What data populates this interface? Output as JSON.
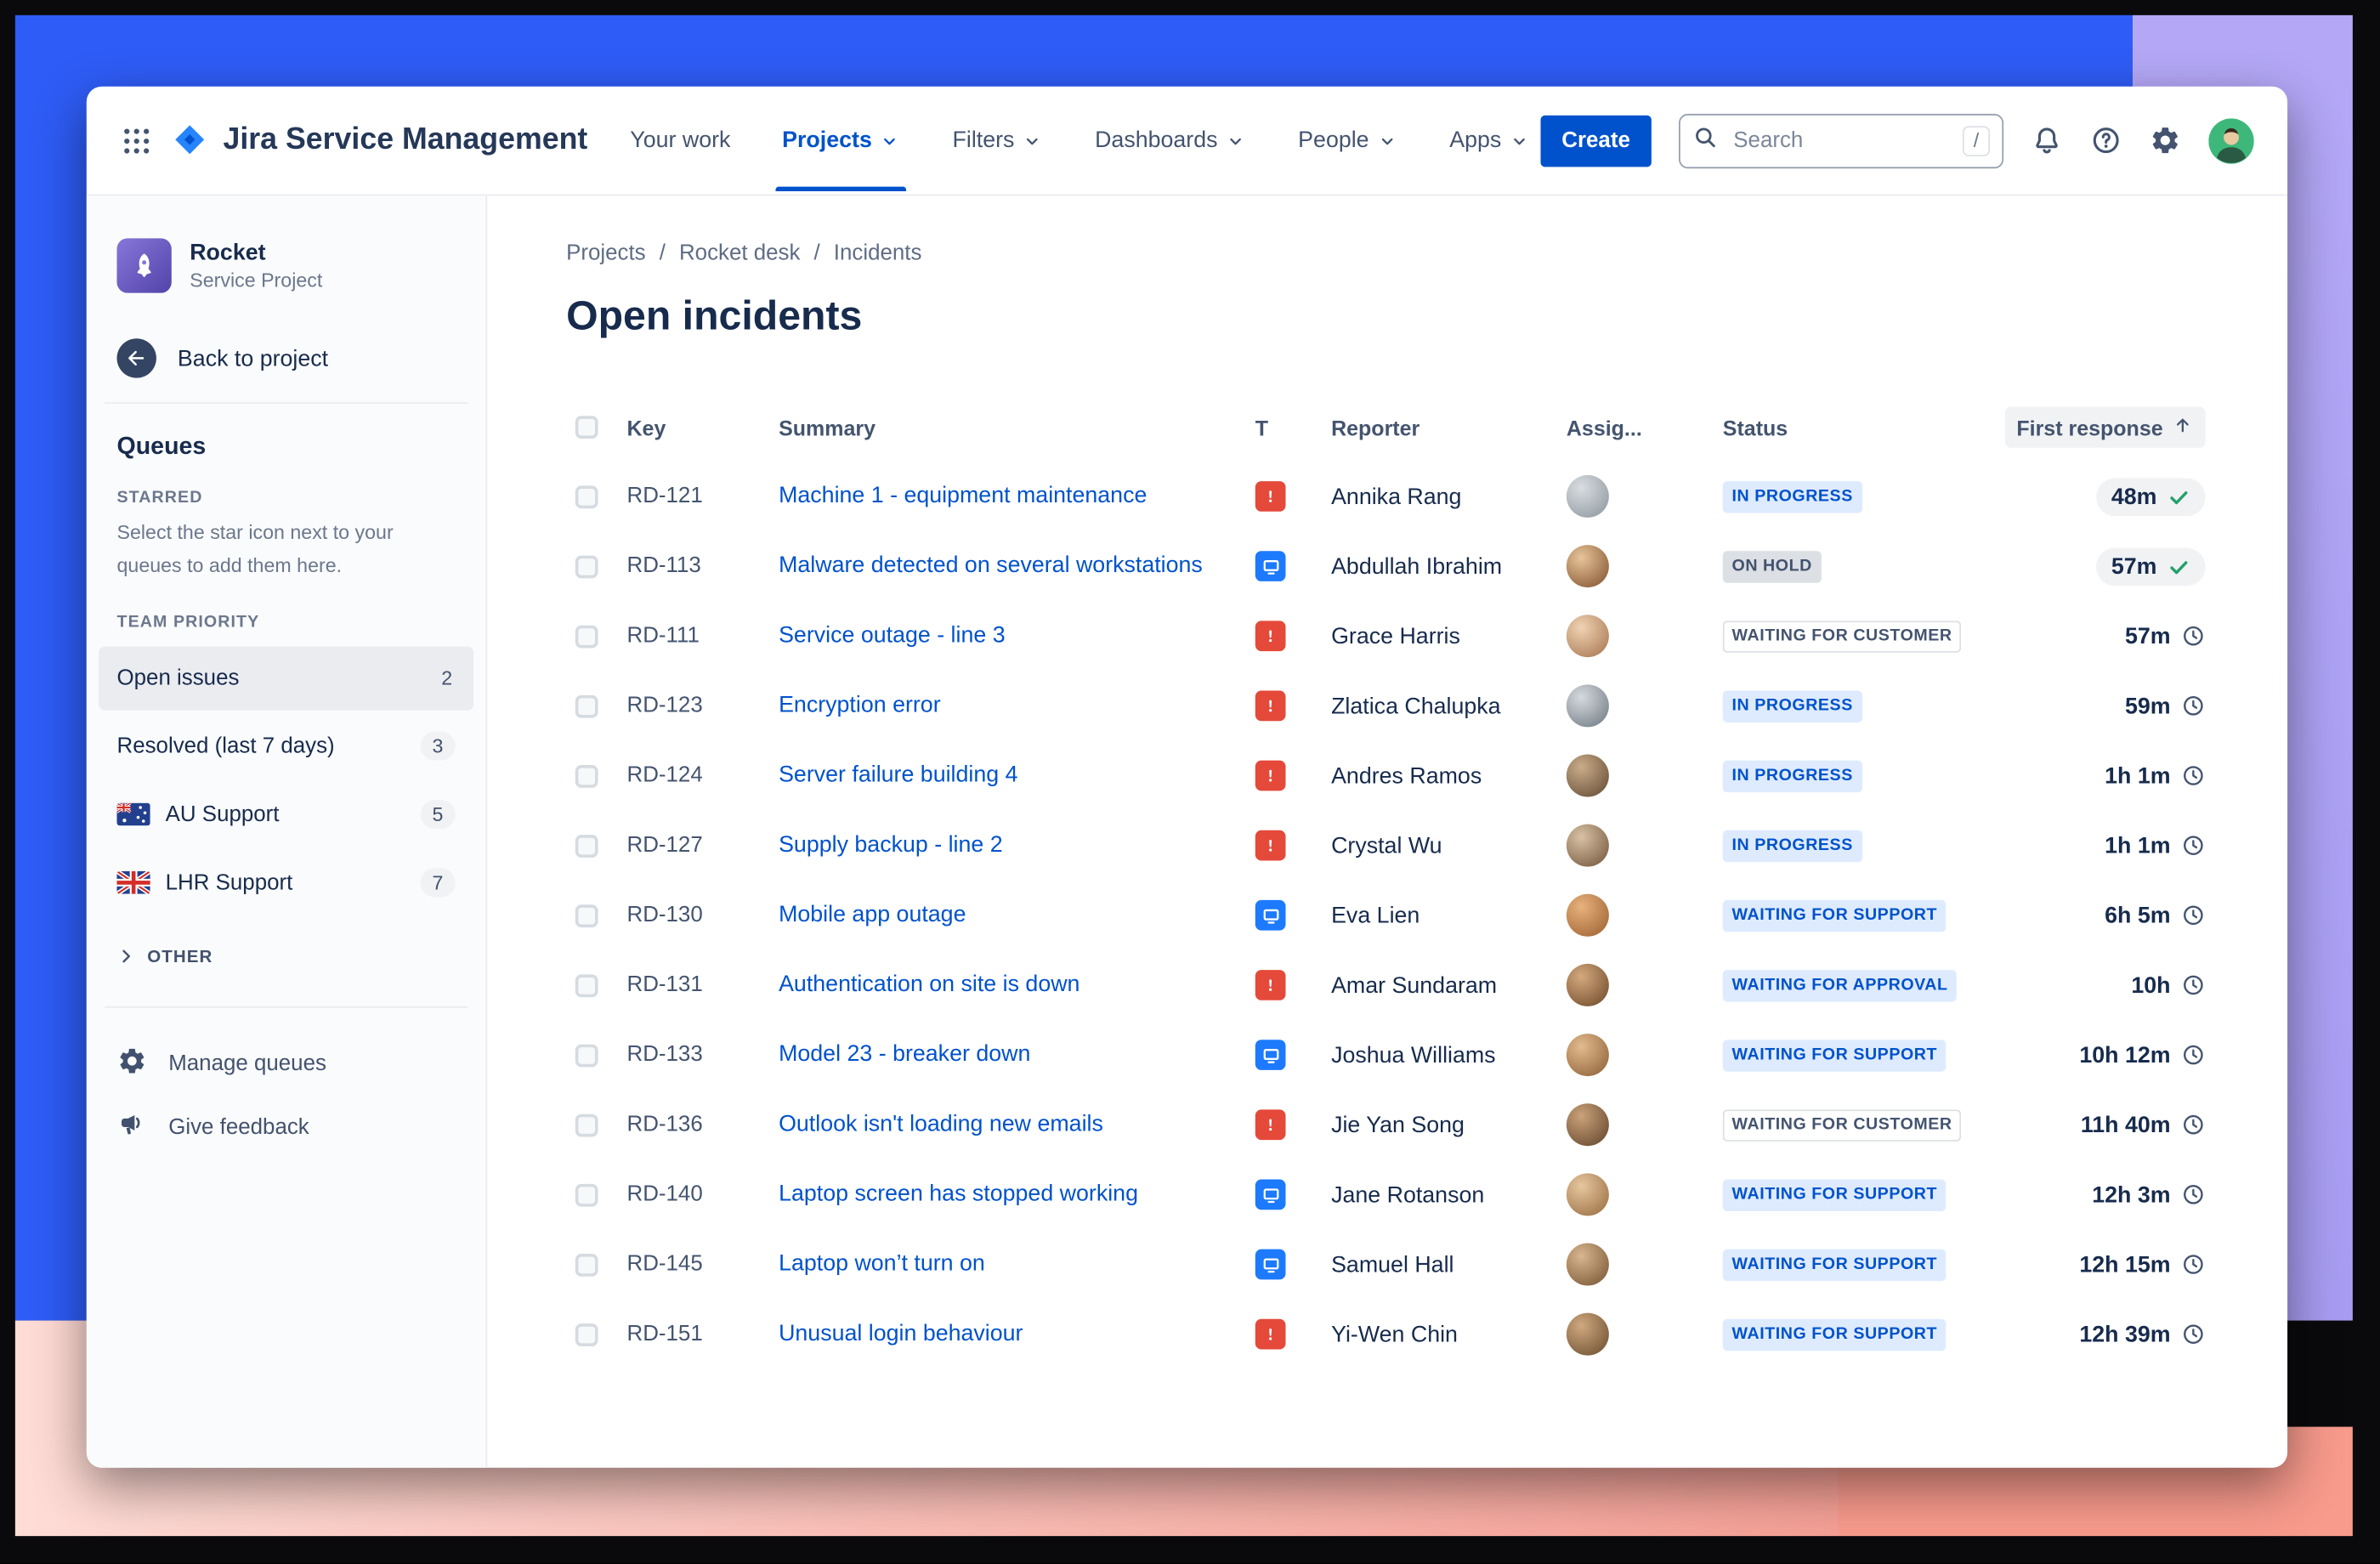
{
  "nav": {
    "brand": "Jira Service Management",
    "items": [
      {
        "label": "Your work",
        "caret": false,
        "active": false
      },
      {
        "label": "Projects",
        "caret": true,
        "active": true
      },
      {
        "label": "Filters",
        "caret": true,
        "active": false
      },
      {
        "label": "Dashboards",
        "caret": true,
        "active": false
      },
      {
        "label": "People",
        "caret": true,
        "active": false
      },
      {
        "label": "Apps",
        "caret": true,
        "active": false
      }
    ],
    "create_label": "Create",
    "search": {
      "placeholder": "Search",
      "shortcut": "/"
    }
  },
  "sidebar": {
    "project": {
      "name": "Rocket",
      "type": "Service Project"
    },
    "back_label": "Back to project",
    "queues_title": "Queues",
    "starred_label": "STARRED",
    "starred_help": "Select the star icon next to your queues to add them here.",
    "team_priority_label": "TEAM PRIORITY",
    "queues": [
      {
        "label": "Open issues",
        "count": "2",
        "selected": true,
        "flag": null
      },
      {
        "label": "Resolved (last 7 days)",
        "count": "3",
        "selected": false,
        "flag": null
      },
      {
        "label": "AU Support",
        "count": "5",
        "selected": false,
        "flag": "au"
      },
      {
        "label": "LHR Support",
        "count": "7",
        "selected": false,
        "flag": "gb"
      }
    ],
    "other_label": "OTHER",
    "manage_label": "Manage queues",
    "feedback_label": "Give feedback"
  },
  "main": {
    "breadcrumb": {
      "items": [
        "Projects",
        "Rocket desk",
        "Incidents"
      ],
      "separator": "/"
    },
    "title": "Open incidents",
    "table": {
      "headers": {
        "key": "Key",
        "summary": "Summary",
        "type": "T",
        "reporter": "Reporter",
        "assignee": "Assig...",
        "status": "Status",
        "first_response": "First response"
      },
      "sort": {
        "column": "first_response",
        "direction": "asc"
      },
      "rows": [
        {
          "key": "RD-121",
          "summary": "Machine 1 - equipment maintenance",
          "type": "incident",
          "reporter": "Annika Rang",
          "status": "IN PROGRESS",
          "status_variant": "blue",
          "response": "48m",
          "response_icon": "check",
          "response_pill": true
        },
        {
          "key": "RD-113",
          "summary": "Malware detected on several workstations",
          "type": "request",
          "reporter": "Abdullah Ibrahim",
          "status": "ON HOLD",
          "status_variant": "gray",
          "response": "57m",
          "response_icon": "check",
          "response_pill": true
        },
        {
          "key": "RD-111",
          "summary": "Service outage - line 3",
          "type": "incident",
          "reporter": "Grace Harris",
          "status": "WAITING FOR CUSTOMER",
          "status_variant": "outline",
          "response": "57m",
          "response_icon": "clock",
          "response_pill": false
        },
        {
          "key": "RD-123",
          "summary": "Encryption error",
          "type": "incident",
          "reporter": "Zlatica Chalupka",
          "status": "IN PROGRESS",
          "status_variant": "blue",
          "response": "59m",
          "response_icon": "clock",
          "response_pill": false
        },
        {
          "key": "RD-124",
          "summary": "Server failure building 4",
          "type": "incident",
          "reporter": "Andres Ramos",
          "status": "IN PROGRESS",
          "status_variant": "blue",
          "response": "1h 1m",
          "response_icon": "clock",
          "response_pill": false
        },
        {
          "key": "RD-127",
          "summary": "Supply backup - line 2",
          "type": "incident",
          "reporter": "Crystal Wu",
          "status": "IN PROGRESS",
          "status_variant": "blue",
          "response": "1h 1m",
          "response_icon": "clock",
          "response_pill": false
        },
        {
          "key": "RD-130",
          "summary": "Mobile app outage",
          "type": "request",
          "reporter": "Eva Lien",
          "status": "WAITING FOR SUPPORT",
          "status_variant": "blue",
          "response": "6h 5m",
          "response_icon": "clock",
          "response_pill": false
        },
        {
          "key": "RD-131",
          "summary": "Authentication on site is down",
          "type": "incident",
          "reporter": "Amar Sundaram",
          "status": "WAITING FOR APPROVAL",
          "status_variant": "blue",
          "response": "10h",
          "response_icon": "clock",
          "response_pill": false
        },
        {
          "key": "RD-133",
          "summary": "Model 23 - breaker down",
          "type": "request",
          "reporter": "Joshua Williams",
          "status": "WAITING FOR SUPPORT",
          "status_variant": "blue",
          "response": "10h 12m",
          "response_icon": "clock",
          "response_pill": false
        },
        {
          "key": "RD-136",
          "summary": "Outlook isn't loading new emails",
          "type": "incident",
          "reporter": "Jie Yan Song",
          "status": "WAITING FOR CUSTOMER",
          "status_variant": "outline",
          "response": "11h 40m",
          "response_icon": "clock",
          "response_pill": false
        },
        {
          "key": "RD-140",
          "summary": "Laptop screen has stopped working",
          "type": "request",
          "reporter": "Jane Rotanson",
          "status": "WAITING FOR SUPPORT",
          "status_variant": "blue",
          "response": "12h 3m",
          "response_icon": "clock",
          "response_pill": false
        },
        {
          "key": "RD-145",
          "summary": "Laptop won’t turn on",
          "type": "request",
          "reporter": "Samuel Hall",
          "status": "WAITING FOR SUPPORT",
          "status_variant": "blue",
          "response": "12h 15m",
          "response_icon": "clock",
          "response_pill": false
        },
        {
          "key": "RD-151",
          "summary": "Unusual login behaviour",
          "type": "incident",
          "reporter": "Yi-Wen Chin",
          "status": "WAITING FOR SUPPORT",
          "status_variant": "blue",
          "response": "12h 39m",
          "response_icon": "clock",
          "response_pill": false
        }
      ]
    }
  },
  "icons": {
    "app_switcher": "grid-dots",
    "logo": "jira-diamond",
    "nav_caret": "chevron-down",
    "search": "magnifier",
    "notifications": "bell",
    "help": "question-circle",
    "settings": "gear",
    "profile": "avatar-circle",
    "back": "arrow-left-circle",
    "project": "rocket",
    "manage_queues": "gear",
    "give_feedback": "megaphone",
    "other_expand": "chevron-right",
    "type_incident": "red-exclamation-square",
    "type_request": "blue-monitor-square",
    "sla_met": "green-check",
    "sla_pending": "clock",
    "sort": "arrow-up",
    "flag_au": "australia-flag",
    "flag_gb": "uk-flag"
  },
  "colors": {
    "accent_blue": "#0052CC",
    "text_dark": "#172B4D",
    "text_gray": "#44546F",
    "text_muted": "#6B778C",
    "status_blue_bg": "#DEEBFF",
    "status_blue_text": "#0052CC",
    "status_gray_bg": "#DCDFE4",
    "status_gray_text": "#42526E",
    "status_outline_border": "#DCDFE4",
    "sla_green": "#22A06B",
    "incident_red": "#E5493A",
    "request_blue": "#1D7AFC",
    "selected_bg": "#EBECF0",
    "sidebar_bg": "#FAFBFC",
    "row_pill": "#F1F2F4",
    "backdrop_blue": "#2E5CF6",
    "backdrop_purple": "#A79CF2",
    "backdrop_pink": "#FFDCD6",
    "backdrop_salmon": "#F89A8C",
    "backdrop_black": "#0A0A0C"
  }
}
